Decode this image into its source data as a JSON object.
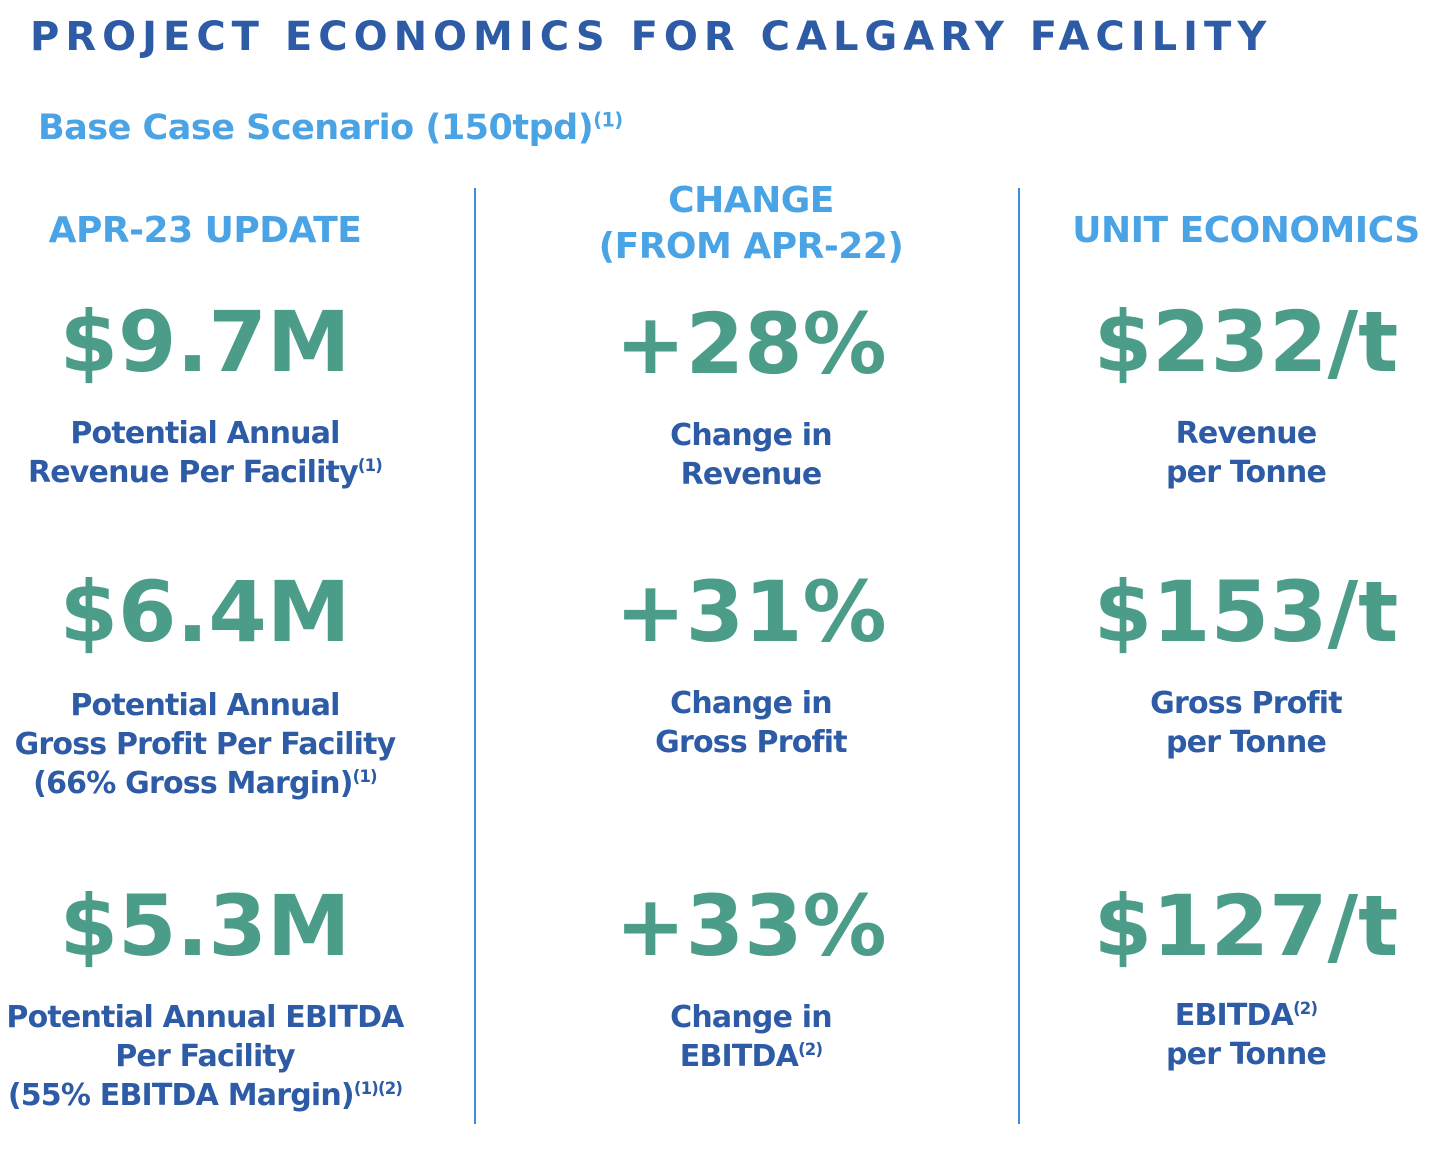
{
  "title": "PROJECT ECONOMICS FOR CALGARY FACILITY",
  "subtitle": {
    "text": "Base Case Scenario (150tpd)",
    "footnote": "(1)"
  },
  "columns": [
    {
      "header_lines": [
        "APR-23 UPDATE"
      ],
      "metrics": [
        {
          "value": "$9.7M",
          "label_lines": [
            "Potential Annual",
            "Revenue Per Facility"
          ],
          "label_footnote": "(1)"
        },
        {
          "value": "$6.4M",
          "label_lines": [
            "Potential Annual",
            "Gross Profit Per Facility",
            "(66% Gross Margin)"
          ],
          "label_footnote": "(1)"
        },
        {
          "value": "$5.3M",
          "label_lines": [
            "Potential Annual EBITDA",
            "Per Facility",
            "(55% EBITDA Margin)"
          ],
          "label_footnote": "(1)(2)"
        }
      ]
    },
    {
      "header_lines": [
        "CHANGE",
        "(FROM APR-22)"
      ],
      "metrics": [
        {
          "value": "+28%",
          "label_lines": [
            "Change in",
            "Revenue"
          ],
          "label_footnote": ""
        },
        {
          "value": "+31%",
          "label_lines": [
            "Change in",
            "Gross Profit"
          ],
          "label_footnote": ""
        },
        {
          "value": "+33%",
          "label_lines": [
            "Change in",
            "EBITDA"
          ],
          "label_footnote": "(2)"
        }
      ]
    },
    {
      "header_lines": [
        "UNIT ECONOMICS"
      ],
      "metrics": [
        {
          "value": "$232/t",
          "label_lines": [
            "Revenue",
            "per Tonne"
          ],
          "label_footnote": ""
        },
        {
          "value": "$153/t",
          "label_lines": [
            "Gross Profit",
            "per Tonne"
          ],
          "label_footnote": ""
        },
        {
          "value": "$127/t",
          "label_lines": [
            "EBITDA",
            "per Tonne"
          ],
          "label_footnote": "(2)",
          "footnote_on_line": 0
        }
      ]
    }
  ],
  "colors": {
    "title": "#2d5ba6",
    "header": "#4aa3e4",
    "value": "#4b9c89",
    "label": "#2d5ba6",
    "divider": "#3b8fd6"
  }
}
